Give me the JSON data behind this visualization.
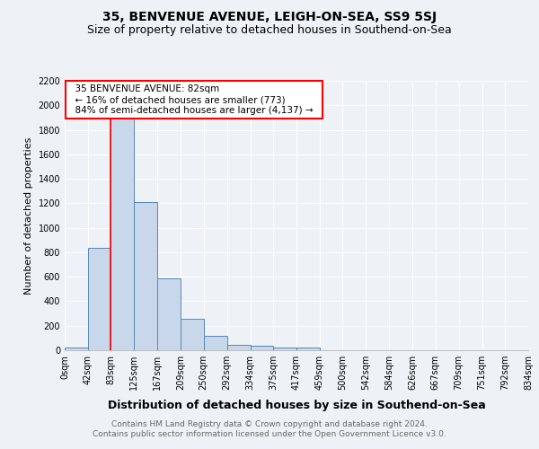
{
  "title": "35, BENVENUE AVENUE, LEIGH-ON-SEA, SS9 5SJ",
  "subtitle": "Size of property relative to detached houses in Southend-on-Sea",
  "xlabel": "Distribution of detached houses by size in Southend-on-Sea",
  "ylabel": "Number of detached properties",
  "footer_line1": "Contains HM Land Registry data © Crown copyright and database right 2024.",
  "footer_line2": "Contains public sector information licensed under the Open Government Licence v3.0.",
  "annotation_line1": "35 BENVENUE AVENUE: 82sqm",
  "annotation_line2": "← 16% of detached houses are smaller (773)",
  "annotation_line3": "84% of semi-detached houses are larger (4,137) →",
  "property_size": 82,
  "bar_edges": [
    0,
    42,
    83,
    125,
    167,
    209,
    250,
    292,
    334,
    375,
    417,
    459,
    500,
    542,
    584,
    626,
    667,
    709,
    751,
    792,
    834
  ],
  "bar_heights": [
    20,
    838,
    1900,
    1210,
    590,
    255,
    120,
    45,
    40,
    20,
    20,
    0,
    0,
    0,
    0,
    0,
    0,
    0,
    0,
    0
  ],
  "bar_color": "#c8d8ea",
  "bar_edge_color": "#5588bb",
  "red_line_x": 82,
  "ylim": [
    0,
    2200
  ],
  "yticks": [
    0,
    200,
    400,
    600,
    800,
    1000,
    1200,
    1400,
    1600,
    1800,
    2000,
    2200
  ],
  "background_color": "#eef2f7",
  "grid_color": "#ffffff",
  "title_fontsize": 10,
  "subtitle_fontsize": 9,
  "xlabel_fontsize": 9,
  "ylabel_fontsize": 8,
  "tick_fontsize": 7,
  "annotation_fontsize": 7.5,
  "footer_fontsize": 6.5
}
